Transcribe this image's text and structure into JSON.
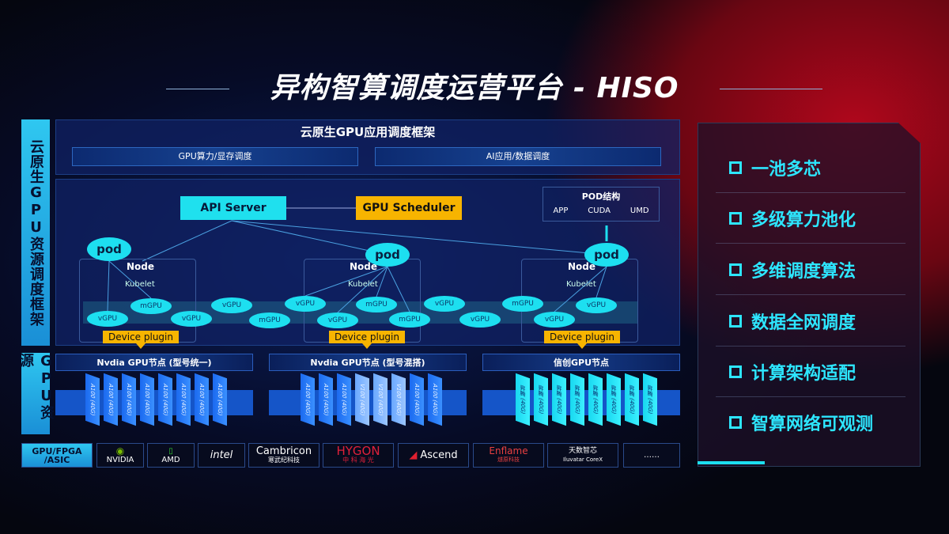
{
  "title": "异构智算调度运营平台 - HISO",
  "sidebar": {
    "top": "云原生GPU资源调度框架",
    "bottom": "GPU资源"
  },
  "framework": {
    "title": "云原生GPU应用调度框架",
    "bar_left": "GPU算力/显存调度",
    "bar_right": "AI应用/数据调度"
  },
  "diagram": {
    "api_server": "API Server",
    "gpu_scheduler": "GPU Scheduler",
    "pod_struct": {
      "title": "POD结构",
      "items": [
        "APP",
        "CUDA",
        "UMD"
      ]
    },
    "pod": "pod",
    "node": "Node",
    "kubelet": "Kubelet",
    "device_plugin": "Device plugin",
    "upper_row": [
      "mGPU",
      "vGPU",
      "vGPU",
      "mGPU",
      "vGPU",
      "mGPU",
      "vGPU"
    ],
    "lower_row": [
      "vGPU",
      "vGPU",
      "mGPU",
      "vGPU",
      "mGPU",
      "vGPU",
      "vGPU"
    ]
  },
  "gpu_nodes": [
    {
      "title": "Nvdia GPU节点 (型号统一)",
      "cards": [
        "A100 (40G)",
        "A100 (40G)",
        "A100 (40G)",
        "A100 (40G)",
        "A100 (40G)",
        "A100 (40G)",
        "A100 (40G)",
        "A100 (40G)"
      ]
    },
    {
      "title": "Nvdia GPU节点 (型号混搭)",
      "cards": [
        "A100 (40G)",
        "A100 (40G)",
        "A100 (40G)",
        "V100 (40G)",
        "V100 (40G)",
        "V100 (40G)",
        "A100 (40G)",
        "A100 (40G)"
      ]
    },
    {
      "title": "信创GPU节点",
      "cards": [
        "昇腾 (40G)",
        "昇腾 (40G)",
        "昇腾 (40G)",
        "昇腾 (40G)",
        "昇腾 (40G)",
        "昇腾 (40G)",
        "昇腾 (40G)",
        "昇腾 (40G)"
      ]
    }
  ],
  "vendors": {
    "label": "GPU/FPGA /ASIC",
    "items": [
      [
        "NVIDIA",
        ""
      ],
      [
        "AMD",
        ""
      ],
      [
        "intel",
        ""
      ],
      [
        "Cambricon",
        "寒武纪科技"
      ],
      [
        "HYGON",
        "中 科 海 光"
      ],
      [
        "Ascend",
        ""
      ],
      [
        "Enflame",
        "燧原科技"
      ],
      [
        "天数智芯",
        "Iluvatar CoreX"
      ],
      [
        "……",
        ""
      ]
    ]
  },
  "features": [
    "一池多芯",
    "多级算力池化",
    "多维调度算法",
    "数据全网调度",
    "计算架构适配",
    "智算网络可观测"
  ],
  "colors": {
    "cyan": "#1ddff0",
    "gold": "#f7b400",
    "card_blue": "#1b6af0",
    "accent_red": "#b0071c"
  }
}
